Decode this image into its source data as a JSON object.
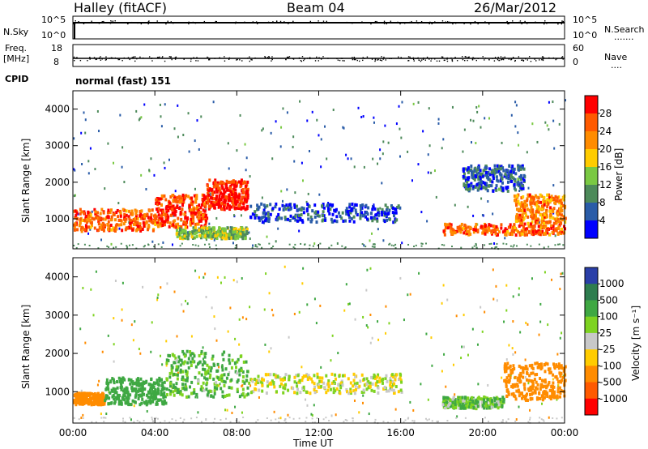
{
  "header": {
    "station": "Halley (fitACF)",
    "beam": "Beam 04",
    "date": "26/Mar/2012"
  },
  "side_labels": {
    "nsky": "N.Sky",
    "nsearch": "N.Search",
    "nsearch_dots": ".......",
    "freq": "Freq.",
    "freq_unit": "[MHz]",
    "nave": "Nave",
    "nave_dots": "....",
    "cpid": "CPID",
    "cpid_text": "normal (fast) 151"
  },
  "panel_ticks": {
    "nsky_left": [
      "10^5",
      "10^0"
    ],
    "nsearch_right": [
      "10^5",
      "10^0"
    ],
    "freq_left": [
      "18",
      "8"
    ],
    "nave_right": [
      "60",
      "0"
    ]
  },
  "chart_data": [
    {
      "type": "heatmap",
      "title": "Power",
      "ylabel": "Slant Range [km]",
      "xlabel": "",
      "ylim": [
        180,
        4500
      ],
      "xlim": [
        0,
        24
      ],
      "yticks": [
        1000,
        2000,
        3000,
        4000
      ],
      "xticks": [
        "00:00",
        "04:00",
        "08:00",
        "12:00",
        "16:00",
        "20:00",
        "00:00"
      ],
      "colorbar": {
        "label": "Power [dB]",
        "ticks": [
          "28",
          "24",
          "20",
          "16",
          "12",
          "8",
          "4"
        ],
        "colors": [
          "#ff0000",
          "#ff5a00",
          "#ff8c00",
          "#ffcc00",
          "#7ac943",
          "#4d8a5a",
          "#2a5ca8",
          "#0000ff"
        ]
      },
      "bands": [
        {
          "x0": 0,
          "x1": 4,
          "y0": 700,
          "y1": 1300,
          "level": 24
        },
        {
          "x0": 4,
          "x1": 6.5,
          "y0": 800,
          "y1": 1700,
          "level": 26
        },
        {
          "x0": 6.5,
          "x1": 8.5,
          "y0": 1300,
          "y1": 2100,
          "level": 28
        },
        {
          "x0": 5,
          "x1": 8.5,
          "y0": 500,
          "y1": 800,
          "level": 14
        },
        {
          "x0": 8.5,
          "x1": 16,
          "y0": 950,
          "y1": 1450,
          "level": 6
        },
        {
          "x0": 18,
          "x1": 24,
          "y0": 600,
          "y1": 900,
          "level": 24
        },
        {
          "x0": 21.5,
          "x1": 24,
          "y0": 900,
          "y1": 1700,
          "level": 22
        },
        {
          "x0": 19,
          "x1": 22,
          "y0": 1800,
          "y1": 2500,
          "level": 8
        }
      ]
    },
    {
      "type": "heatmap",
      "title": "Velocity",
      "ylabel": "Slant Range [km]",
      "xlabel": "Time UT",
      "ylim": [
        180,
        4500
      ],
      "xlim": [
        0,
        24
      ],
      "yticks": [
        1000,
        2000,
        3000,
        4000
      ],
      "xticks": [
        "00:00",
        "04:00",
        "08:00",
        "12:00",
        "16:00",
        "20:00",
        "00:00"
      ],
      "colorbar": {
        "label": "Velocity [m s⁻¹]",
        "ticks": [
          "1000",
          "500",
          "100",
          "25",
          "-25",
          "-100",
          "-500",
          "-1000"
        ],
        "colors": [
          "#2a3fa8",
          "#2e7d4f",
          "#3fa843",
          "#7ed321",
          "#c8c8c8",
          "#ffcc00",
          "#ff8c00",
          "#ff5a00",
          "#ff0000"
        ]
      },
      "bands": [
        {
          "x0": 0,
          "x1": 1.5,
          "y0": 700,
          "y1": 1000,
          "level": -300
        },
        {
          "x0": 1.5,
          "x1": 4.5,
          "y0": 700,
          "y1": 1400,
          "level": 400
        },
        {
          "x0": 4.5,
          "x1": 8.5,
          "y0": 900,
          "y1": 2100,
          "level": 120
        },
        {
          "x0": 8.5,
          "x1": 16,
          "y0": 1000,
          "y1": 1500,
          "level": 0
        },
        {
          "x0": 18,
          "x1": 21,
          "y0": 600,
          "y1": 900,
          "level": 80
        },
        {
          "x0": 21,
          "x1": 24,
          "y0": 800,
          "y1": 1800,
          "level": -300
        }
      ]
    }
  ]
}
